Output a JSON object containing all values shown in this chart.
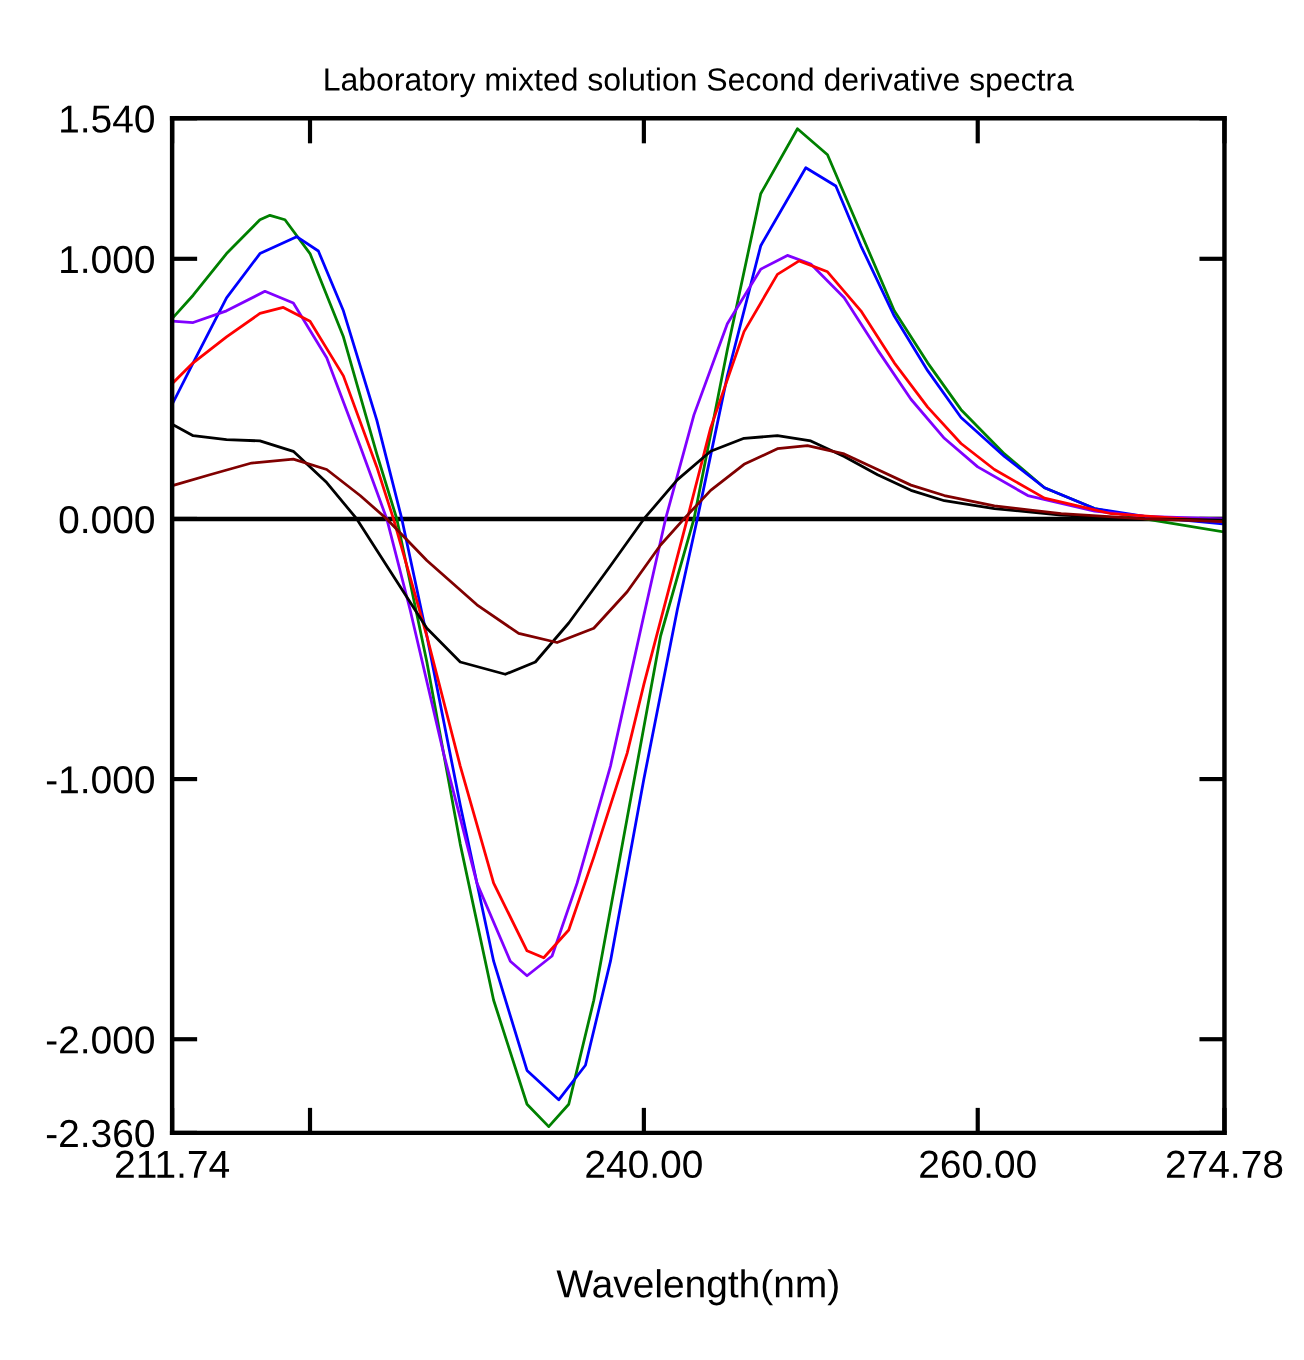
{
  "chart_data": {
    "type": "line",
    "title": "Laboratory mixted solution Second derivative spectra",
    "xlabel": "Wavelength(nm)",
    "xlim": [
      211.74,
      274.78
    ],
    "ylim": [
      -2.36,
      1.54
    ],
    "xticks": [
      211.74,
      {
        "value": 220,
        "label": null
      },
      {
        "value": 240,
        "label": "240.00"
      },
      {
        "value": 260,
        "label": "260.00"
      },
      274.78
    ],
    "yticks": [
      {
        "value": 1.54,
        "label": "1.540"
      },
      {
        "value": 1.0,
        "label": "1.000"
      },
      {
        "value": 0,
        "label": "0.000"
      },
      {
        "value": -1.0,
        "label": "-1.000"
      },
      {
        "value": -2.0,
        "label": "-2.000"
      },
      {
        "value": -2.36,
        "label": "-2.360"
      }
    ],
    "grid": false,
    "marker": "none",
    "line_style": "solid",
    "ref_lines": [
      {
        "axis": "y",
        "value": 0,
        "color": "#000000"
      }
    ],
    "series": [
      {
        "color": "#008000",
        "x": [
          211.74,
          213,
          215,
          217,
          217.6,
          218.5,
          220,
          222,
          224,
          225.2,
          227,
          229,
          231,
          233,
          234.3,
          235.5,
          237,
          239,
          241,
          243,
          245,
          247,
          249.2,
          251,
          253,
          255,
          257,
          259,
          261.6,
          264,
          267,
          270,
          274.78
        ],
        "values": [
          0.77,
          0.86,
          1.02,
          1.15,
          1.167,
          1.15,
          1.02,
          0.7,
          0.25,
          0,
          -0.55,
          -1.25,
          -1.85,
          -2.25,
          -2.336,
          -2.25,
          -1.85,
          -1.15,
          -0.45,
          0,
          0.65,
          1.25,
          1.5,
          1.4,
          1.1,
          0.8,
          0.6,
          0.42,
          0.25,
          0.12,
          0.04,
          0.0,
          -0.05
        ]
      },
      {
        "color": "#0000ff",
        "x": [
          211.74,
          213,
          215,
          217,
          219.2,
          220.5,
          222,
          224,
          225.5,
          227,
          229,
          231,
          233,
          234.9,
          236.5,
          238,
          240,
          242,
          243.2,
          245,
          247,
          249.7,
          251.5,
          253,
          255,
          257,
          259,
          261.6,
          264,
          267,
          270,
          274.78
        ],
        "values": [
          0.44,
          0.6,
          0.85,
          1.02,
          1.085,
          1.03,
          0.8,
          0.38,
          0,
          -0.45,
          -1.1,
          -1.7,
          -2.12,
          -2.233,
          -2.1,
          -1.7,
          -1.0,
          -0.35,
          0,
          0.55,
          1.05,
          1.35,
          1.28,
          1.05,
          0.78,
          0.57,
          0.39,
          0.24,
          0.12,
          0.04,
          0.01,
          -0.02
        ]
      },
      {
        "color": "#8000ff",
        "x": [
          211.74,
          213,
          215,
          217.3,
          219,
          221,
          223,
          224.6,
          226,
          228,
          230,
          232,
          233,
          234.5,
          236,
          238,
          240,
          241.3,
          243,
          245,
          247,
          248.6,
          250,
          252,
          254,
          256,
          258,
          260,
          263,
          267,
          270,
          274.78
        ],
        "values": [
          0.76,
          0.755,
          0.8,
          0.875,
          0.83,
          0.62,
          0.28,
          0,
          -0.35,
          -0.9,
          -1.4,
          -1.7,
          -1.756,
          -1.68,
          -1.4,
          -0.95,
          -0.37,
          0,
          0.4,
          0.75,
          0.96,
          1.013,
          0.98,
          0.85,
          0.65,
          0.46,
          0.31,
          0.2,
          0.09,
          0.03,
          0.01,
          0.0
        ]
      },
      {
        "color": "#ff0000",
        "x": [
          211.74,
          213,
          215,
          217,
          218.4,
          220,
          222,
          224,
          225,
          227,
          229,
          231,
          233,
          234,
          235.5,
          237,
          239,
          240,
          242.6,
          244,
          246,
          248,
          249.3,
          251,
          253,
          255,
          257,
          259,
          261,
          264,
          268,
          274.78
        ],
        "values": [
          0.52,
          0.6,
          0.7,
          0.79,
          0.813,
          0.76,
          0.55,
          0.2,
          0,
          -0.45,
          -0.95,
          -1.4,
          -1.66,
          -1.687,
          -1.58,
          -1.3,
          -0.9,
          -0.636,
          0,
          0.35,
          0.72,
          0.94,
          0.992,
          0.95,
          0.8,
          0.6,
          0.43,
          0.29,
          0.19,
          0.08,
          0.02,
          -0.01
        ]
      },
      {
        "color": "#000000",
        "x": [
          211.74,
          213,
          215,
          217,
          219,
          221,
          222.8,
          225,
          227,
          229,
          231.7,
          233.5,
          235.5,
          238,
          240,
          242,
          244,
          246,
          248,
          250,
          252,
          254,
          256,
          258,
          261,
          265,
          270,
          274.78
        ],
        "values": [
          0.364,
          0.32,
          0.305,
          0.3,
          0.26,
          0.14,
          0,
          -0.22,
          -0.42,
          -0.55,
          -0.597,
          -0.55,
          -0.4,
          -0.18,
          0,
          0.15,
          0.26,
          0.31,
          0.32,
          0.3,
          0.24,
          0.17,
          0.11,
          0.07,
          0.04,
          0.015,
          0.0,
          -0.005
        ]
      },
      {
        "color": "#800000",
        "x": [
          211.74,
          214,
          216.5,
          219,
          221,
          223,
          224.6,
          227,
          230,
          232.5,
          234.8,
          237,
          239,
          241,
          242.4,
          244,
          246,
          248,
          249.8,
          252,
          254,
          256,
          258,
          261,
          265,
          270,
          274.78
        ],
        "values": [
          0.128,
          0.17,
          0.215,
          0.23,
          0.19,
          0.09,
          0,
          -0.16,
          -0.33,
          -0.44,
          -0.475,
          -0.42,
          -0.28,
          -0.1,
          0,
          0.11,
          0.21,
          0.27,
          0.282,
          0.25,
          0.19,
          0.13,
          0.09,
          0.05,
          0.02,
          0.0,
          -0.01
        ]
      }
    ]
  }
}
